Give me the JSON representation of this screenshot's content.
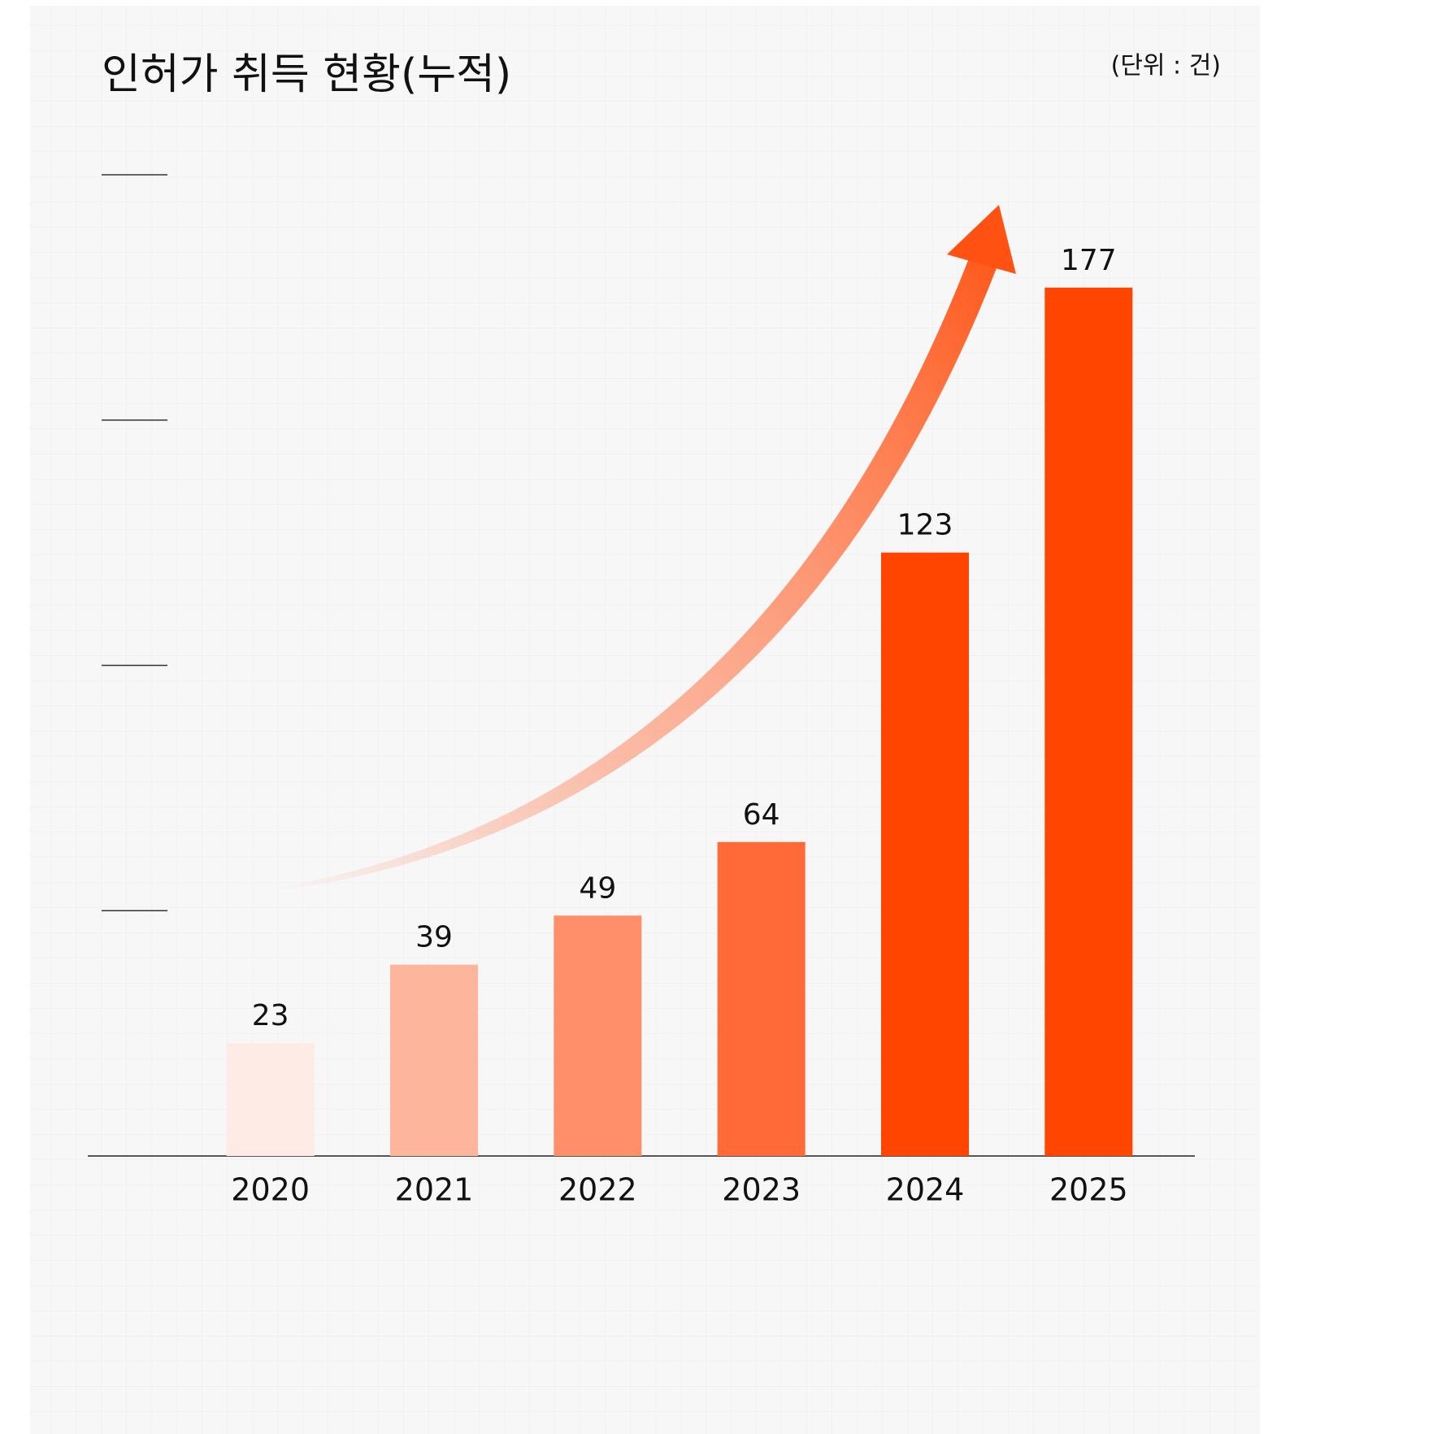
{
  "chart_data": {
    "type": "bar",
    "title": "인허가 취득 현황(누적)",
    "subtitle": "(단위 : 건)",
    "categories": [
      "2020",
      "2021",
      "2022",
      "2023",
      "2024",
      "2025"
    ],
    "values": [
      23,
      39,
      49,
      64,
      123,
      177
    ],
    "colors": [
      "#ffebe5",
      "#fdb59b",
      "#fe8f6a",
      "#ff6a38",
      "#ff4500",
      "#ff4500"
    ],
    "ylim": [
      0,
      200
    ],
    "yticks": [
      50,
      100,
      150,
      200
    ]
  }
}
